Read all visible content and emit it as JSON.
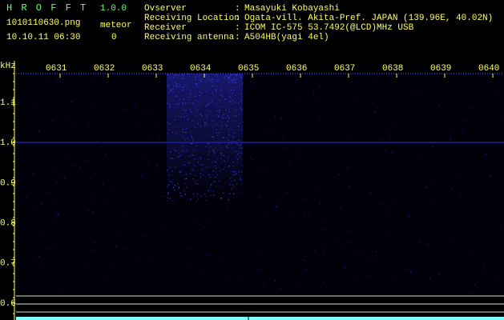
{
  "app": {
    "name": "H R O F F T",
    "version": "1.0.0"
  },
  "file": {
    "name": "1010110630.png",
    "timestamp": "10.10.11 06:30"
  },
  "meteor": {
    "label": "meteor",
    "count": 0
  },
  "info": {
    "separator": ":",
    "rows": [
      {
        "label": "Ovserver",
        "value": "Masayuki Kobayashi"
      },
      {
        "label": "Receiving Location",
        "value": "Ogata-vill. Akita-Pref. JAPAN (139.96E, 40.02N)"
      },
      {
        "label": "Receiver",
        "value": "ICOM IC-575 53.7492(@LCD)MHz USB"
      },
      {
        "label": "Receiving antenna",
        "value": "A504HB(yagi 4el)"
      }
    ]
  },
  "spectrogram": {
    "frequency_unit": "kHz",
    "time_labels": [
      "0631",
      "0632",
      "0633",
      "0634",
      "0635",
      "0636",
      "0637",
      "0638",
      "0639",
      "0640"
    ],
    "frequency_labels": [
      "1.1",
      "1.0",
      "0.9",
      "0.8",
      "0.7",
      "0.6"
    ]
  }
}
